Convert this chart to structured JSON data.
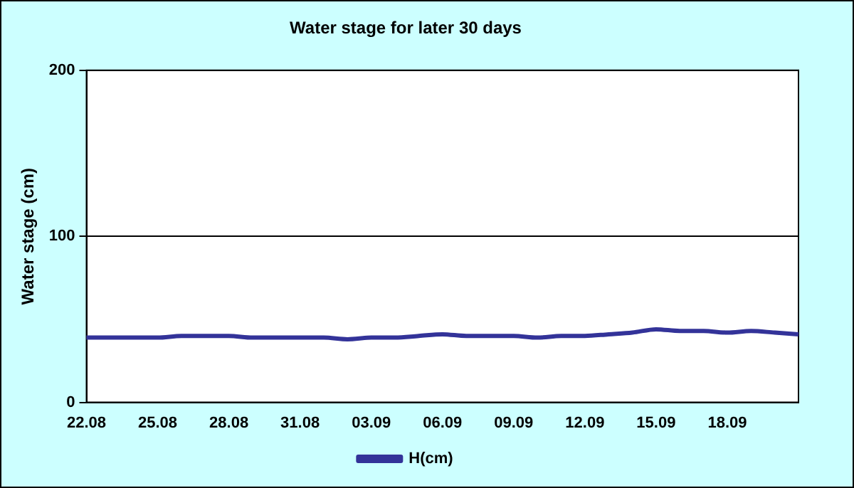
{
  "chart_data": {
    "type": "line",
    "title": "Water stage for later 30 days",
    "ylabel": "Water stage (cm)",
    "categories": [
      "22.08",
      null,
      null,
      "25.08",
      null,
      null,
      "28.08",
      null,
      null,
      "31.08",
      null,
      null,
      "03.09",
      null,
      null,
      "06.09",
      null,
      null,
      "09.09",
      null,
      null,
      "12.09",
      null,
      null,
      "15.09",
      null,
      null,
      "18.09",
      null,
      null,
      null
    ],
    "series": [
      {
        "name": "H(cm)",
        "color": "#333399",
        "values": [
          39,
          39,
          39,
          39,
          40,
          40,
          40,
          39,
          39,
          39,
          39,
          38,
          39,
          39,
          40,
          41,
          40,
          40,
          40,
          39,
          40,
          40,
          41,
          42,
          44,
          43,
          43,
          42,
          43,
          42,
          41
        ]
      }
    ],
    "ylim": [
      0,
      200
    ],
    "yticks": [
      0,
      100,
      200
    ],
    "grid": "y",
    "legend": "bottom",
    "marker": "none",
    "line_style": "solid"
  }
}
